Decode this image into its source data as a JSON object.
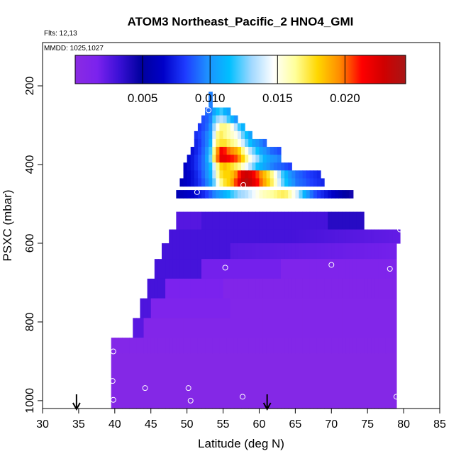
{
  "chart_data": {
    "type": "heatmap",
    "title": "ATOM3 Northeast_Pacific_2 HNO4_GMI",
    "flights_note": "Flts: 12,13",
    "dates_note": "MMDD: 1025,1027",
    "xlabel": "Latitude (deg N)",
    "ylabel": "PSXC (mbar)",
    "xlim": [
      30,
      85
    ],
    "ylim": [
      1020,
      90
    ],
    "x_ticks": [
      "30",
      "35",
      "40",
      "45",
      "50",
      "55",
      "60",
      "65",
      "70",
      "75",
      "80",
      "85"
    ],
    "y_ticks": [
      "200",
      "400",
      "600",
      "800",
      "1000"
    ],
    "colorbar": {
      "range": [
        0.0,
        0.0245
      ],
      "ticks": [
        "0.005",
        "0.010",
        "0.015",
        "0.020"
      ],
      "colors": [
        "#8a2be2",
        "#7b22ee",
        "#3a10d6",
        "#00009e",
        "#0000c8",
        "#1e3cff",
        "#1e90ff",
        "#00bfff",
        "#a0d8ff",
        "#ffffff",
        "#ffff99",
        "#ffd700",
        "#ff8c00",
        "#ff0000",
        "#d00000",
        "#a81616"
      ]
    },
    "grid": false,
    "legend_placement": "colorbar-top",
    "flight_arrows_lat": [
      34.7,
      61.1
    ],
    "sample_points": [
      [
        53.0,
        262
      ],
      [
        51.4,
        470
      ],
      [
        57.8,
        452
      ],
      [
        55.3,
        662
      ],
      [
        70.0,
        655
      ],
      [
        78.1,
        665
      ],
      [
        79.5,
        565
      ],
      [
        39.8,
        875
      ],
      [
        39.7,
        950
      ],
      [
        44.2,
        968
      ],
      [
        50.2,
        968
      ],
      [
        39.8,
        998
      ],
      [
        50.5,
        1000
      ],
      [
        57.7,
        990
      ],
      [
        79.0,
        990
      ]
    ],
    "values_matrix_note": "cells: [lat, pressure, value]",
    "cells": [
      [
        53.25,
        225,
        0.0095
      ],
      [
        53.25,
        245,
        0.0095
      ],
      [
        52.75,
        265,
        0.009
      ],
      [
        53.25,
        265,
        0.0092
      ],
      [
        53.75,
        265,
        0.0105
      ],
      [
        54.25,
        265,
        0.0115
      ],
      [
        54.75,
        265,
        0.012
      ],
      [
        55.25,
        265,
        0.011
      ],
      [
        55.75,
        265,
        0.0105
      ],
      [
        52.25,
        285,
        0.0085
      ],
      [
        52.75,
        285,
        0.0088
      ],
      [
        53.25,
        285,
        0.0095
      ],
      [
        53.75,
        285,
        0.012
      ],
      [
        54.25,
        285,
        0.013
      ],
      [
        54.75,
        285,
        0.0135
      ],
      [
        55.25,
        285,
        0.013
      ],
      [
        55.75,
        285,
        0.012
      ],
      [
        56.25,
        285,
        0.011
      ],
      [
        56.75,
        285,
        0.01
      ],
      [
        51.75,
        305,
        0.008
      ],
      [
        52.25,
        305,
        0.0085
      ],
      [
        52.75,
        305,
        0.009
      ],
      [
        53.25,
        305,
        0.01
      ],
      [
        53.75,
        305,
        0.013
      ],
      [
        54.25,
        305,
        0.015
      ],
      [
        54.75,
        305,
        0.0165
      ],
      [
        55.25,
        305,
        0.0165
      ],
      [
        55.75,
        305,
        0.016
      ],
      [
        56.25,
        305,
        0.015
      ],
      [
        56.75,
        305,
        0.0135
      ],
      [
        57.25,
        305,
        0.012
      ],
      [
        57.75,
        305,
        0.011
      ],
      [
        51.25,
        325,
        0.0078
      ],
      [
        51.75,
        325,
        0.0082
      ],
      [
        52.25,
        325,
        0.0088
      ],
      [
        52.75,
        325,
        0.0095
      ],
      [
        53.25,
        325,
        0.0105
      ],
      [
        53.75,
        325,
        0.014
      ],
      [
        54.25,
        325,
        0.0165
      ],
      [
        54.75,
        325,
        0.017
      ],
      [
        55.25,
        325,
        0.0165
      ],
      [
        55.75,
        325,
        0.016
      ],
      [
        56.25,
        325,
        0.0155
      ],
      [
        56.75,
        325,
        0.015
      ],
      [
        57.25,
        325,
        0.014
      ],
      [
        57.75,
        325,
        0.0125
      ],
      [
        58.25,
        325,
        0.0115
      ],
      [
        58.75,
        325,
        0.0105
      ],
      [
        51.25,
        345,
        0.0075
      ],
      [
        51.75,
        345,
        0.008
      ],
      [
        52.25,
        345,
        0.0088
      ],
      [
        52.75,
        345,
        0.0095
      ],
      [
        53.25,
        345,
        0.011
      ],
      [
        53.75,
        345,
        0.015
      ],
      [
        54.25,
        345,
        0.017
      ],
      [
        54.75,
        345,
        0.0175
      ],
      [
        55.25,
        345,
        0.0175
      ],
      [
        55.75,
        345,
        0.017
      ],
      [
        56.25,
        345,
        0.0165
      ],
      [
        56.75,
        345,
        0.016
      ],
      [
        57.25,
        345,
        0.015
      ],
      [
        57.75,
        345,
        0.014
      ],
      [
        58.25,
        345,
        0.0125
      ],
      [
        58.75,
        345,
        0.0115
      ],
      [
        59.25,
        345,
        0.0105
      ],
      [
        59.75,
        345,
        0.01
      ],
      [
        60.25,
        345,
        0.0095
      ],
      [
        60.75,
        345,
        0.009
      ],
      [
        50.75,
        365,
        0.007
      ],
      [
        51.25,
        365,
        0.0075
      ],
      [
        51.75,
        365,
        0.0082
      ],
      [
        52.25,
        365,
        0.009
      ],
      [
        52.75,
        365,
        0.01
      ],
      [
        53.25,
        365,
        0.012
      ],
      [
        53.75,
        365,
        0.0165
      ],
      [
        54.25,
        365,
        0.0195
      ],
      [
        54.75,
        365,
        0.0215
      ],
      [
        55.25,
        365,
        0.021
      ],
      [
        55.75,
        365,
        0.02
      ],
      [
        56.25,
        365,
        0.0195
      ],
      [
        56.75,
        365,
        0.019
      ],
      [
        57.25,
        365,
        0.018
      ],
      [
        57.75,
        365,
        0.0165
      ],
      [
        58.25,
        365,
        0.015
      ],
      [
        58.75,
        365,
        0.0135
      ],
      [
        59.25,
        365,
        0.0125
      ],
      [
        59.75,
        365,
        0.0115
      ],
      [
        60.25,
        365,
        0.0105
      ],
      [
        60.75,
        365,
        0.01
      ],
      [
        61.25,
        365,
        0.0095
      ],
      [
        61.75,
        365,
        0.009
      ],
      [
        62.25,
        365,
        0.0088
      ],
      [
        62.75,
        365,
        0.0085
      ],
      [
        50.25,
        385,
        0.0068
      ],
      [
        50.75,
        385,
        0.0072
      ],
      [
        51.25,
        385,
        0.0078
      ],
      [
        51.75,
        385,
        0.0085
      ],
      [
        52.25,
        385,
        0.0092
      ],
      [
        52.75,
        385,
        0.0105
      ],
      [
        53.25,
        385,
        0.0125
      ],
      [
        53.75,
        385,
        0.017
      ],
      [
        54.25,
        385,
        0.02
      ],
      [
        54.75,
        385,
        0.022
      ],
      [
        55.25,
        385,
        0.022
      ],
      [
        55.75,
        385,
        0.0215
      ],
      [
        56.25,
        385,
        0.021
      ],
      [
        56.75,
        385,
        0.0205
      ],
      [
        57.25,
        385,
        0.0195
      ],
      [
        57.75,
        385,
        0.018
      ],
      [
        58.25,
        385,
        0.0165
      ],
      [
        58.75,
        385,
        0.015
      ],
      [
        59.25,
        385,
        0.014
      ],
      [
        59.75,
        385,
        0.013
      ],
      [
        60.25,
        385,
        0.012
      ],
      [
        60.75,
        385,
        0.011
      ],
      [
        61.25,
        385,
        0.0105
      ],
      [
        61.75,
        385,
        0.01
      ],
      [
        62.25,
        385,
        0.0098
      ],
      [
        62.75,
        385,
        0.0095
      ],
      [
        49.75,
        405,
        0.0065
      ],
      [
        50.25,
        405,
        0.0068
      ],
      [
        50.75,
        405,
        0.0072
      ],
      [
        51.25,
        405,
        0.0078
      ],
      [
        51.75,
        405,
        0.0085
      ],
      [
        52.25,
        405,
        0.0092
      ],
      [
        52.75,
        405,
        0.01
      ],
      [
        53.25,
        405,
        0.0115
      ],
      [
        53.75,
        405,
        0.014
      ],
      [
        54.25,
        405,
        0.0165
      ],
      [
        54.75,
        405,
        0.018
      ],
      [
        55.25,
        405,
        0.0185
      ],
      [
        55.75,
        405,
        0.018
      ],
      [
        56.25,
        405,
        0.0175
      ],
      [
        56.75,
        405,
        0.017
      ],
      [
        57.25,
        405,
        0.0165
      ],
      [
        57.75,
        405,
        0.0155
      ],
      [
        58.25,
        405,
        0.0145
      ],
      [
        58.75,
        405,
        0.0135
      ],
      [
        59.25,
        405,
        0.0125
      ],
      [
        59.75,
        405,
        0.0115
      ],
      [
        60.25,
        405,
        0.011
      ],
      [
        60.75,
        405,
        0.0105
      ],
      [
        61.25,
        405,
        0.01
      ],
      [
        61.75,
        405,
        0.0095
      ],
      [
        62.25,
        405,
        0.0092
      ],
      [
        62.75,
        405,
        0.009
      ],
      [
        63.25,
        405,
        0.0088
      ],
      [
        63.75,
        405,
        0.0085
      ],
      [
        64.25,
        405,
        0.0082
      ],
      [
        49.75,
        425,
        0.0062
      ],
      [
        50.25,
        425,
        0.0066
      ],
      [
        50.75,
        425,
        0.007
      ],
      [
        51.25,
        425,
        0.0075
      ],
      [
        51.75,
        425,
        0.0082
      ],
      [
        52.25,
        425,
        0.009
      ],
      [
        52.75,
        425,
        0.0098
      ],
      [
        53.25,
        425,
        0.011
      ],
      [
        53.75,
        425,
        0.0135
      ],
      [
        54.25,
        425,
        0.016
      ],
      [
        54.75,
        425,
        0.0175
      ],
      [
        55.25,
        425,
        0.018
      ],
      [
        55.75,
        425,
        0.018
      ],
      [
        56.25,
        425,
        0.0185
      ],
      [
        56.75,
        425,
        0.0195
      ],
      [
        57.25,
        425,
        0.021
      ],
      [
        57.75,
        425,
        0.0225
      ],
      [
        58.25,
        425,
        0.023
      ],
      [
        58.75,
        425,
        0.0225
      ],
      [
        59.25,
        425,
        0.0215
      ],
      [
        59.75,
        425,
        0.0205
      ],
      [
        60.25,
        425,
        0.0195
      ],
      [
        60.75,
        425,
        0.0185
      ],
      [
        61.25,
        425,
        0.0175
      ],
      [
        61.75,
        425,
        0.0165
      ],
      [
        62.25,
        425,
        0.015
      ],
      [
        62.75,
        425,
        0.0135
      ],
      [
        63.25,
        425,
        0.012
      ],
      [
        63.75,
        425,
        0.011
      ],
      [
        64.25,
        425,
        0.01
      ],
      [
        64.75,
        425,
        0.0095
      ],
      [
        65.25,
        425,
        0.009
      ],
      [
        65.75,
        425,
        0.0088
      ],
      [
        66.25,
        425,
        0.0085
      ],
      [
        66.75,
        425,
        0.0082
      ],
      [
        67.25,
        425,
        0.008
      ],
      [
        67.75,
        425,
        0.0078
      ],
      [
        68.25,
        425,
        0.0076
      ],
      [
        49.25,
        445,
        0.006
      ],
      [
        49.75,
        445,
        0.0063
      ],
      [
        50.25,
        445,
        0.0066
      ],
      [
        50.75,
        445,
        0.007
      ],
      [
        51.25,
        445,
        0.0074
      ],
      [
        51.75,
        445,
        0.008
      ],
      [
        52.25,
        445,
        0.0087
      ],
      [
        52.75,
        445,
        0.0095
      ],
      [
        53.25,
        445,
        0.0105
      ],
      [
        53.75,
        445,
        0.0125
      ],
      [
        54.25,
        445,
        0.015
      ],
      [
        54.75,
        445,
        0.0165
      ],
      [
        55.25,
        445,
        0.0175
      ],
      [
        55.75,
        445,
        0.018
      ],
      [
        56.25,
        445,
        0.019
      ],
      [
        56.75,
        445,
        0.0205
      ],
      [
        57.25,
        445,
        0.022
      ],
      [
        57.75,
        445,
        0.0232
      ],
      [
        58.25,
        445,
        0.0238
      ],
      [
        58.75,
        445,
        0.0232
      ],
      [
        59.25,
        445,
        0.0222
      ],
      [
        59.75,
        445,
        0.0212
      ],
      [
        60.25,
        445,
        0.02
      ],
      [
        60.75,
        445,
        0.019
      ],
      [
        61.25,
        445,
        0.018
      ],
      [
        61.75,
        445,
        0.017
      ],
      [
        62.25,
        445,
        0.0155
      ],
      [
        62.75,
        445,
        0.014
      ],
      [
        63.25,
        445,
        0.0125
      ],
      [
        63.75,
        445,
        0.0115
      ],
      [
        64.25,
        445,
        0.0105
      ],
      [
        64.75,
        445,
        0.0098
      ],
      [
        65.25,
        445,
        0.0092
      ],
      [
        65.75,
        445,
        0.009
      ],
      [
        66.25,
        445,
        0.0088
      ],
      [
        66.75,
        445,
        0.0085
      ],
      [
        67.25,
        445,
        0.0082
      ],
      [
        67.75,
        445,
        0.008
      ],
      [
        68.25,
        445,
        0.0078
      ],
      [
        68.75,
        445,
        0.0076
      ],
      [
        48.75,
        475,
        0.0058
      ],
      [
        49.25,
        475,
        0.006
      ],
      [
        49.75,
        475,
        0.0062
      ],
      [
        50.25,
        475,
        0.0064
      ],
      [
        50.75,
        475,
        0.0066
      ],
      [
        51.25,
        475,
        0.0068
      ],
      [
        51.75,
        475,
        0.0072
      ],
      [
        52.25,
        475,
        0.0076
      ],
      [
        52.75,
        475,
        0.0082
      ],
      [
        53.25,
        475,
        0.0088
      ],
      [
        53.75,
        475,
        0.0095
      ],
      [
        54.25,
        475,
        0.01
      ],
      [
        54.75,
        475,
        0.0105
      ],
      [
        55.25,
        475,
        0.011
      ],
      [
        55.75,
        475,
        0.0115
      ],
      [
        56.25,
        475,
        0.012
      ],
      [
        56.75,
        475,
        0.0125
      ],
      [
        57.25,
        475,
        0.013
      ],
      [
        57.75,
        475,
        0.0132
      ],
      [
        58.25,
        475,
        0.0135
      ],
      [
        58.75,
        475,
        0.014
      ],
      [
        59.25,
        475,
        0.0145
      ],
      [
        59.75,
        475,
        0.015
      ],
      [
        60.25,
        475,
        0.0155
      ],
      [
        60.75,
        475,
        0.0158
      ],
      [
        61.25,
        475,
        0.016
      ],
      [
        61.75,
        475,
        0.0162
      ],
      [
        62.25,
        475,
        0.0165
      ],
      [
        62.75,
        475,
        0.0168
      ],
      [
        63.25,
        475,
        0.017
      ],
      [
        63.75,
        475,
        0.0168
      ],
      [
        64.25,
        475,
        0.016
      ],
      [
        64.75,
        475,
        0.015
      ],
      [
        65.25,
        475,
        0.014
      ],
      [
        65.75,
        475,
        0.0125
      ],
      [
        66.25,
        475,
        0.011
      ],
      [
        66.75,
        475,
        0.01
      ],
      [
        67.25,
        475,
        0.0092
      ],
      [
        67.75,
        475,
        0.0085
      ],
      [
        68.25,
        475,
        0.008
      ],
      [
        68.75,
        475,
        0.0076
      ],
      [
        69.25,
        475,
        0.0072
      ],
      [
        69.75,
        475,
        0.0068
      ],
      [
        70.25,
        475,
        0.0064
      ],
      [
        70.75,
        475,
        0.006
      ],
      [
        71.25,
        475,
        0.0056
      ],
      [
        71.75,
        475,
        0.0052
      ],
      [
        72.25,
        475,
        0.0048
      ],
      [
        72.75,
        475,
        0.0044
      ]
    ]
  }
}
